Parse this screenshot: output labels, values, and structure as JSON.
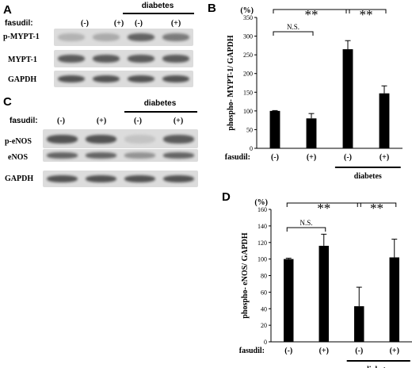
{
  "panel_a": {
    "letter": "A",
    "fasudil_label": "fasudil:",
    "treatments": [
      "(-)",
      "(+)",
      "(-)",
      "(+)"
    ],
    "group_label": "diabetes",
    "rows": [
      {
        "label": "p-MYPT-1",
        "intensity": [
          0.25,
          0.3,
          0.75,
          0.6
        ]
      },
      {
        "label": "MYPT-1",
        "intensity": [
          0.8,
          0.8,
          0.8,
          0.8
        ]
      },
      {
        "label": "GAPDH",
        "intensity": [
          0.85,
          0.85,
          0.85,
          0.85
        ]
      }
    ]
  },
  "panel_c": {
    "letter": "C",
    "fasudil_label": "fasudil:",
    "treatments": [
      "(-)",
      "(+)",
      "(-)",
      "(+)"
    ],
    "group_label": "diabetes",
    "rows": [
      {
        "label": "p-eNOS",
        "intensity": [
          0.85,
          0.85,
          0.15,
          0.8
        ]
      },
      {
        "label": "eNOS",
        "intensity": [
          0.75,
          0.75,
          0.45,
          0.75
        ]
      },
      {
        "label": "GAPDH",
        "intensity": [
          0.85,
          0.85,
          0.85,
          0.85
        ]
      }
    ]
  },
  "chart_data": [
    {
      "panel": "B",
      "type": "bar",
      "unit_label": "(%)",
      "ylabel": "phospho- MYPT-1/ GAPDH",
      "categories": [
        "(-)",
        "(+)",
        "(-)",
        "(+)"
      ],
      "values": [
        100,
        80,
        265,
        147
      ],
      "errors": [
        1,
        13,
        23,
        20
      ],
      "ylim": [
        0,
        350
      ],
      "yticks": [
        "0",
        "50",
        "100",
        "150",
        "200",
        "250",
        "300",
        "350"
      ],
      "x_prefix": "fasudil:",
      "group_label": "diabetes",
      "annotations": {
        "ns": "N.S.",
        "sig": "**"
      }
    },
    {
      "panel": "D",
      "type": "bar",
      "unit_label": "(%)",
      "ylabel": "phospho- eNOS/ GAPDH",
      "categories": [
        "(-)",
        "(+)",
        "(-)",
        "(+)"
      ],
      "values": [
        100,
        116,
        43,
        102
      ],
      "errors": [
        1,
        14,
        23,
        22
      ],
      "ylim": [
        0,
        160
      ],
      "yticks": [
        "0",
        "20",
        "40",
        "60",
        "80",
        "100",
        "120",
        "140",
        "160"
      ],
      "x_prefix": "fasudil:",
      "group_label": "diabetes",
      "annotations": {
        "ns": "N.S.",
        "sig": "**"
      }
    }
  ]
}
